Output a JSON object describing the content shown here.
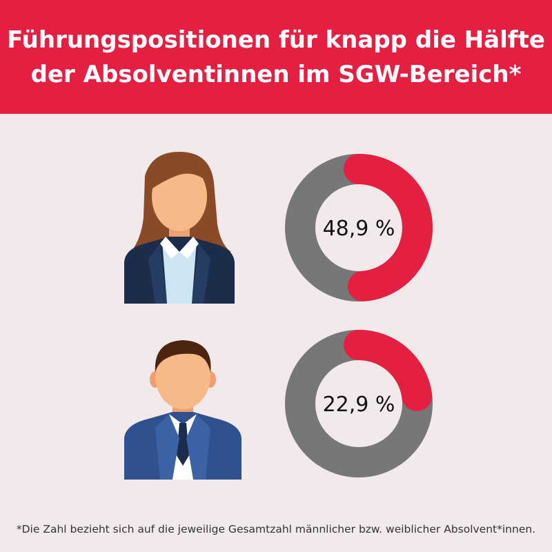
{
  "header": {
    "title_line1": "Führungspositionen für knapp die Hälfte",
    "title_line2": "der Absolventinnen im SGW-Bereich*"
  },
  "chart_data": {
    "type": "pie",
    "style": "donut",
    "series": [
      {
        "icon": "woman-avatar-icon",
        "value": 48.9,
        "label": "48,9 %"
      },
      {
        "icon": "man-avatar-icon",
        "value": 22.9,
        "label": "22,9 %"
      }
    ],
    "colors": {
      "share": "#e41f42",
      "rest": "#777777"
    }
  },
  "footnote": "*Die Zahl bezieht sich auf die jeweilige Gesamtzahl männlicher bzw. weiblicher Absolvent*innen."
}
